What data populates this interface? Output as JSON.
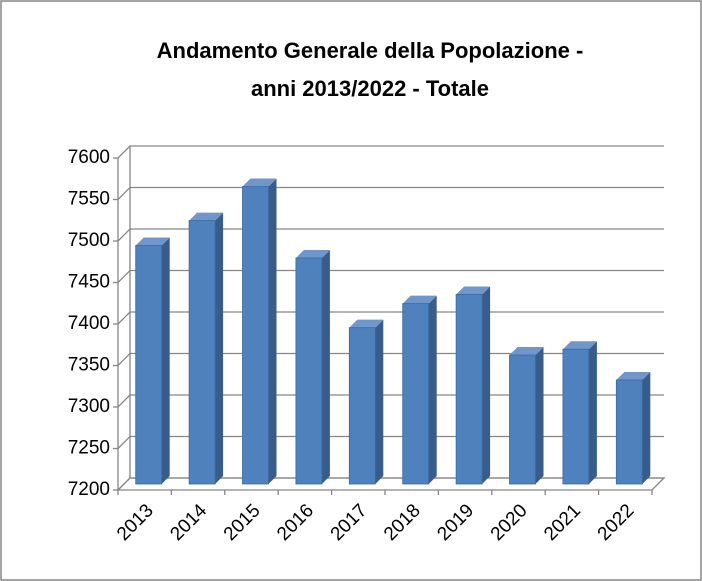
{
  "chart_data": {
    "type": "bar",
    "title": [
      "Andamento Generale della Popolazione -",
      "anni 2013/2022 - Totale"
    ],
    "categories": [
      "2013",
      "2014",
      "2015",
      "2016",
      "2017",
      "2018",
      "2019",
      "2020",
      "2021",
      "2022"
    ],
    "values": [
      7497,
      7527,
      7568,
      7482,
      7398,
      7427,
      7438,
      7365,
      7372,
      7335
    ],
    "color": "#4f81bd",
    "ylim": [
      7200,
      7600
    ],
    "yticks": [
      7200,
      7250,
      7300,
      7350,
      7400,
      7450,
      7500,
      7550,
      7600
    ],
    "grid": true
  }
}
